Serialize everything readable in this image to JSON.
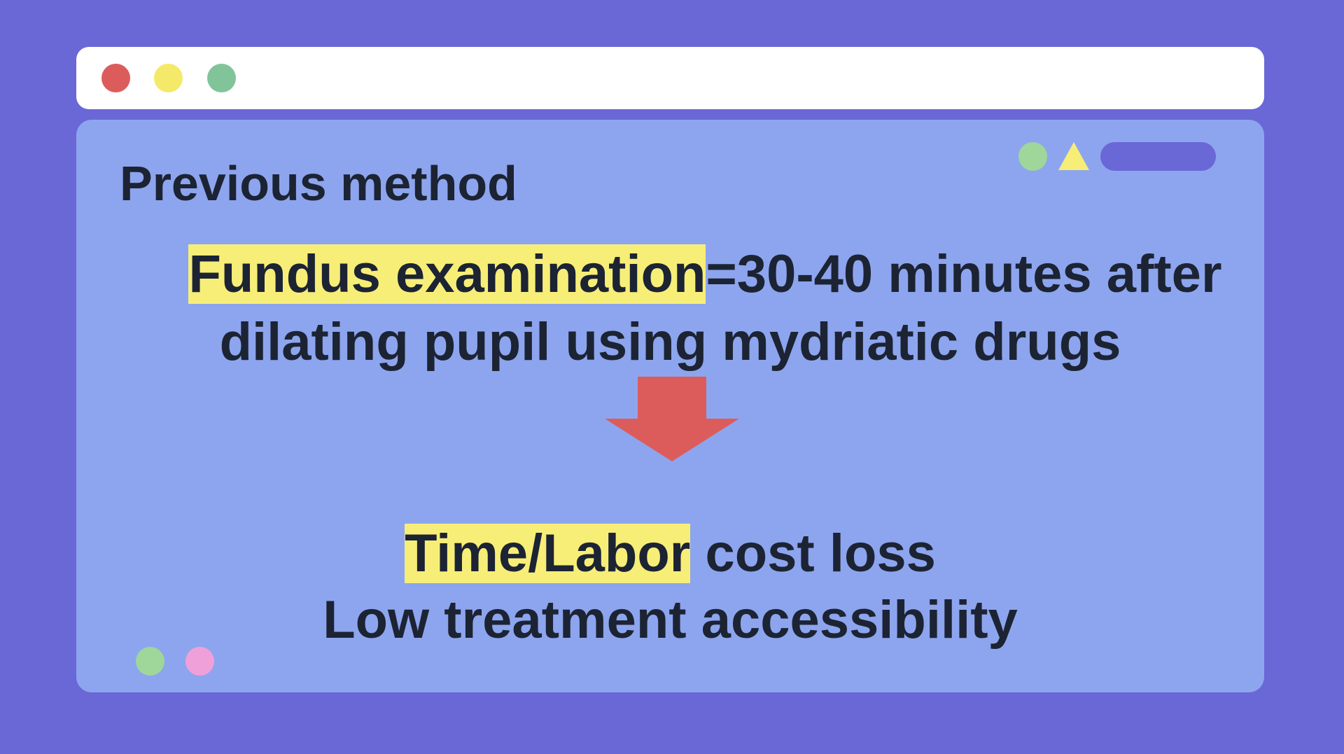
{
  "window": {
    "controls": [
      "close",
      "minimize",
      "maximize"
    ]
  },
  "slide": {
    "heading": "Previous method",
    "line1": {
      "highlight": "Fundus examination",
      "rest": "=30-40 minutes after"
    },
    "line2": "dilating pupil using mydriatic drugs",
    "line3": {
      "highlight": "Time/Labor",
      "rest": " cost loss"
    },
    "line4": "Low treatment accessibility",
    "arrow_icon": "arrow-down-icon"
  },
  "colors": {
    "background": "#6a67d6",
    "panel": "#8da5ee",
    "highlight": "#f7ee78",
    "text": "#1c2333",
    "close_dot": "#dc5c5c",
    "minimize_dot": "#f5e96a",
    "maximize_dot": "#82c49a",
    "accent_green": "#9fd69a",
    "accent_pink": "#f0a0d8",
    "accent_pill": "#6a67d6",
    "arrow": "#dc5c5c"
  }
}
